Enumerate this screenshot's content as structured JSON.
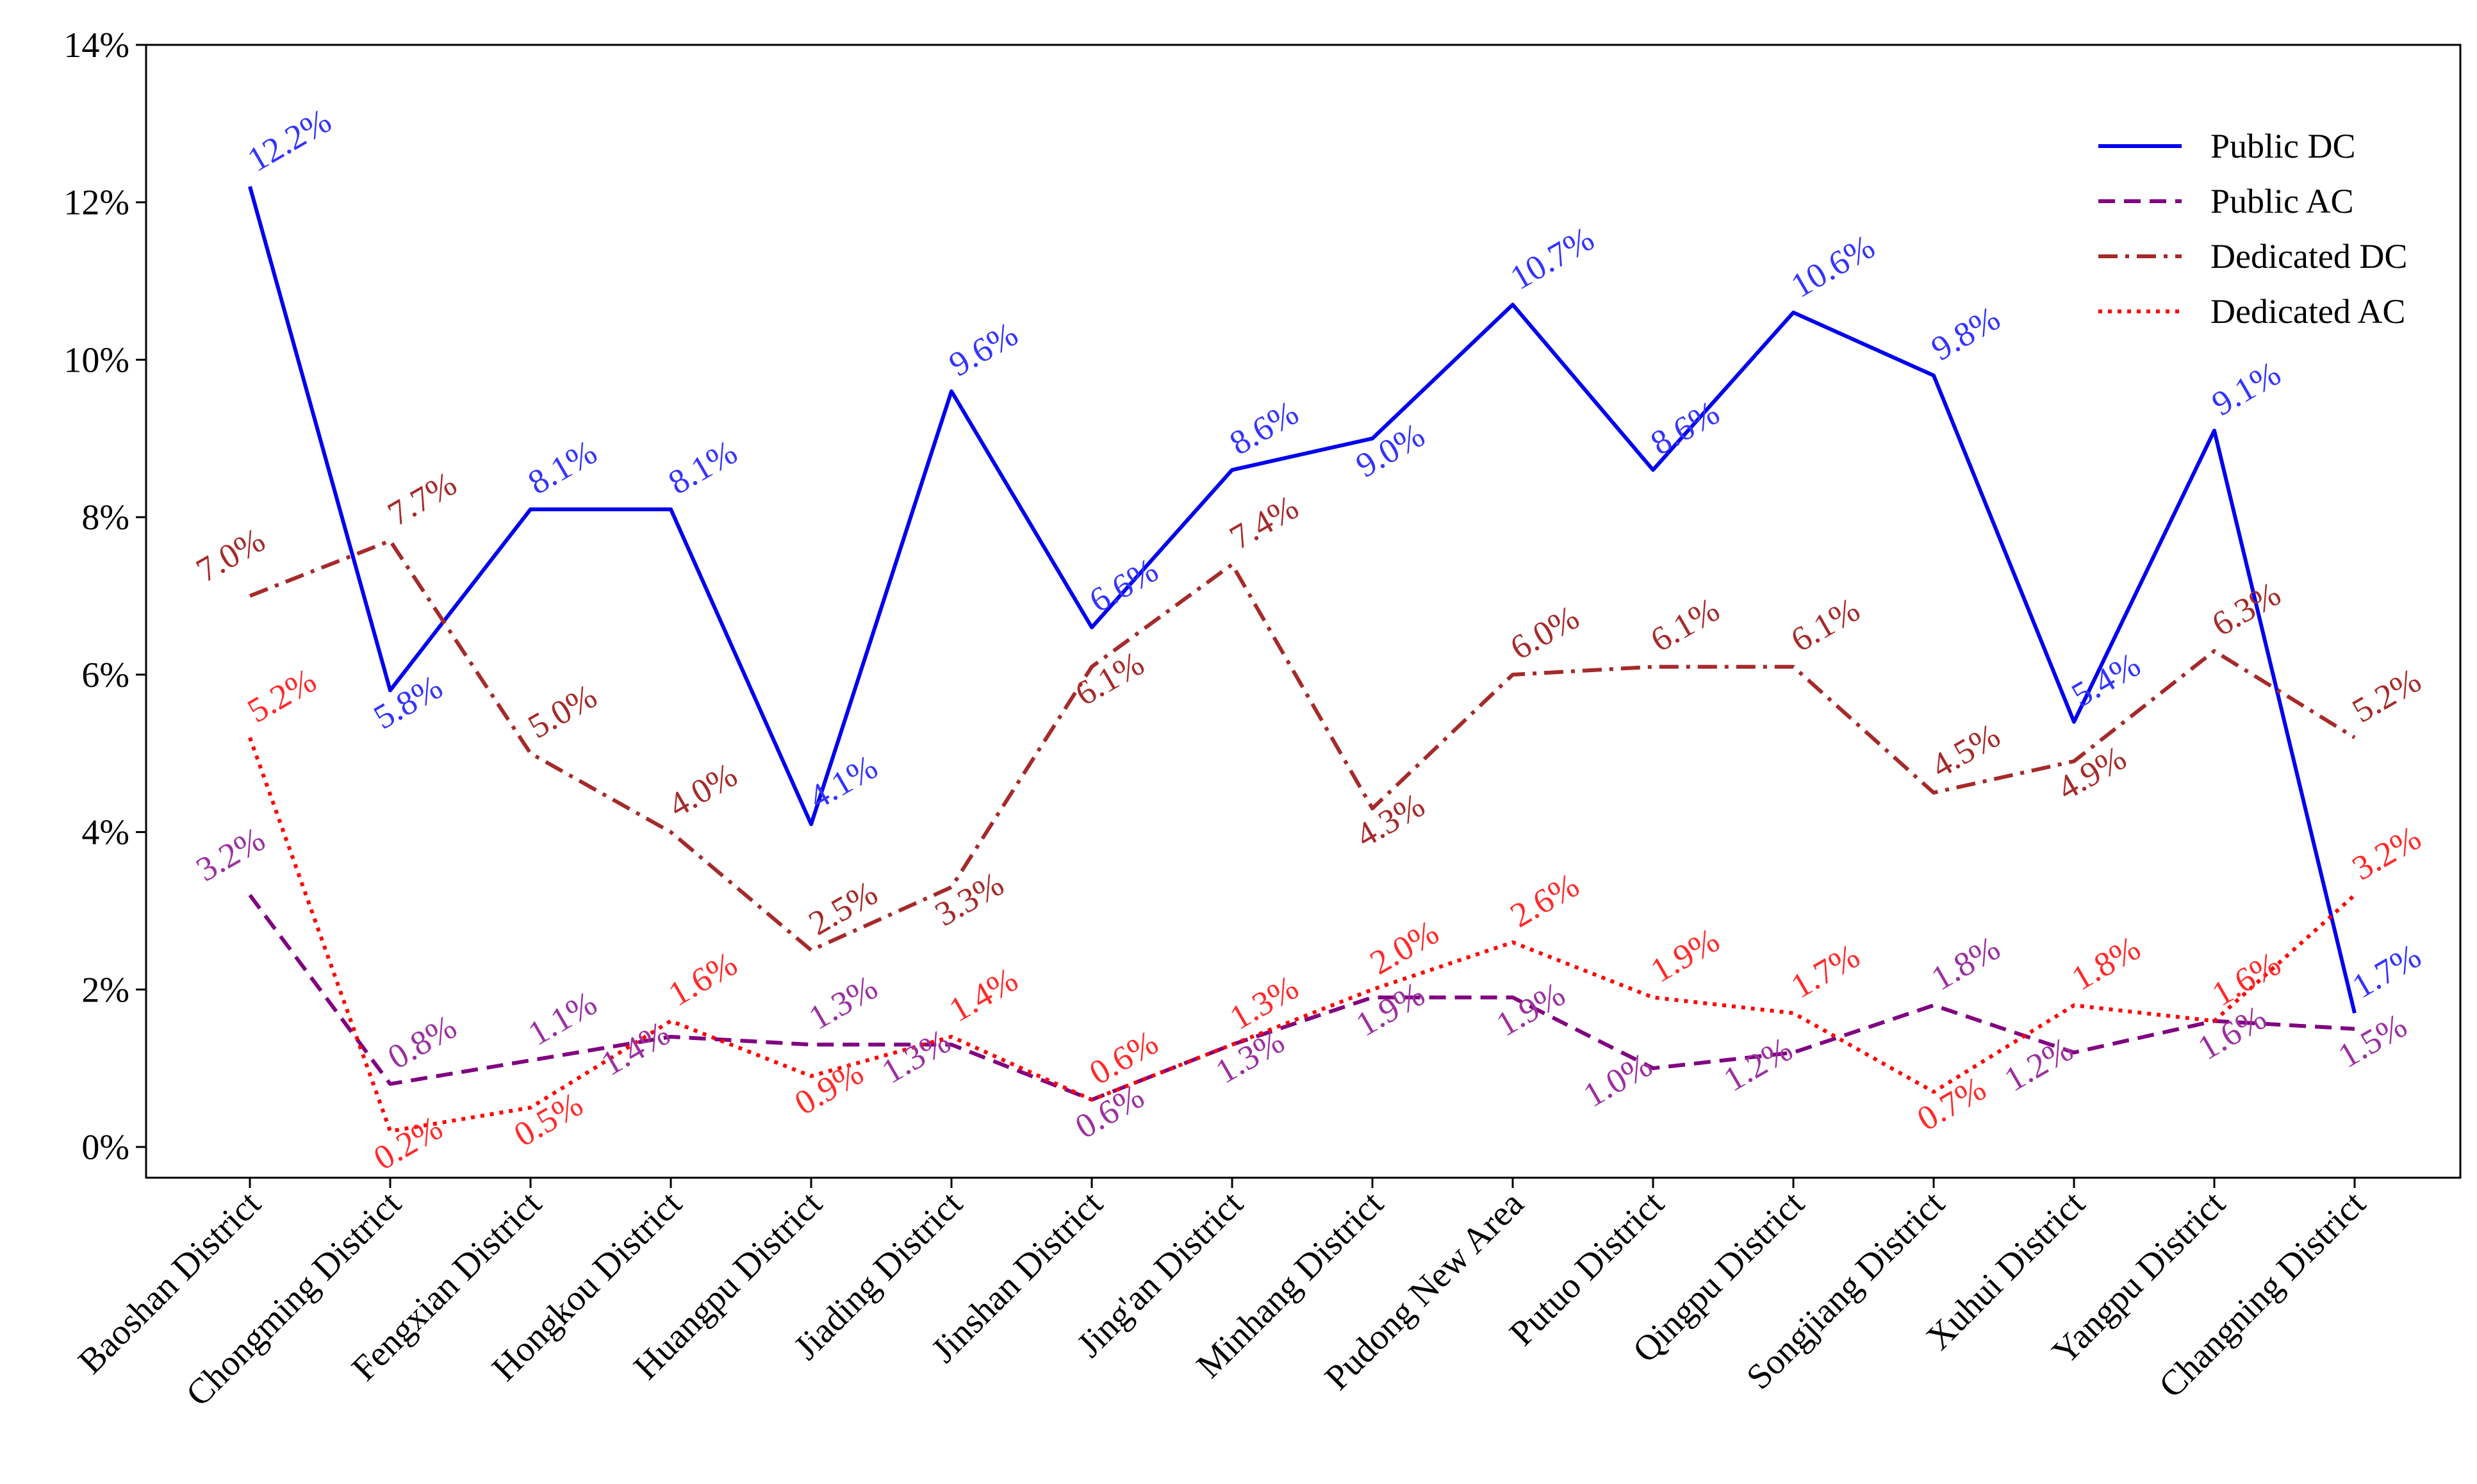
{
  "chart_data": {
    "type": "line",
    "title": "",
    "xlabel": "",
    "ylabel": "",
    "ylim": [
      0,
      14
    ],
    "yticks": [
      0,
      2,
      4,
      6,
      8,
      10,
      12,
      14
    ],
    "ytick_labels": [
      "0%",
      "2%",
      "4%",
      "6%",
      "8%",
      "10%",
      "12%",
      "14%"
    ],
    "grid": false,
    "legend_position": "top-right",
    "categories": [
      "Baoshan District",
      "Chongming District",
      "Fengxian District",
      "Hongkou District",
      "Huangpu District",
      "Jiading District",
      "Jinshan District",
      "Jing'an District",
      "Minhang District",
      "Pudong New Area",
      "Putuo District",
      "Qingpu District",
      "Songjiang District",
      "Xuhui District",
      "Yangpu District",
      "Changning District"
    ],
    "series": [
      {
        "name": "Public DC",
        "color": "#0000ee",
        "label_color": "#3333ff",
        "style": "solid",
        "values": [
          12.2,
          5.8,
          8.1,
          8.1,
          4.1,
          9.6,
          6.6,
          8.6,
          9.0,
          10.7,
          8.6,
          10.6,
          9.8,
          5.4,
          9.1,
          1.7
        ],
        "labels": [
          "12.2%",
          "5.8%",
          "8.1%",
          "8.1%",
          "4.1%",
          "9.6%",
          "6.6%",
          "8.6%",
          "9.0%",
          "10.7%",
          "8.6%",
          "10.6%",
          "9.8%",
          "5.4%",
          "9.1%",
          "1.7%"
        ],
        "label_pos": [
          "above",
          "below",
          "above",
          "above",
          "above",
          "above",
          "above",
          "above",
          "below",
          "above",
          "above",
          "above",
          "above",
          "above",
          "above",
          "above"
        ]
      },
      {
        "name": "Public AC",
        "color": "#800080",
        "label_color": "#9b30a0",
        "style": "dashed",
        "values": [
          3.2,
          0.8,
          1.1,
          1.4,
          1.3,
          1.3,
          0.6,
          1.3,
          1.9,
          1.9,
          1.0,
          1.2,
          1.8,
          1.2,
          1.6,
          1.5
        ],
        "labels": [
          "3.2%",
          "0.8%",
          "1.1%",
          "1.4%",
          "1.3%",
          "1.3%",
          "0.6%",
          "1.3%",
          "1.9%",
          "1.9%",
          "1.0%",
          "1.2%",
          "1.8%",
          "1.2%",
          "1.6%",
          "1.5%"
        ],
        "label_pos": [
          "above-left",
          "above",
          "above",
          "below-left",
          "above",
          "below-left",
          "below",
          "below",
          "below",
          "below",
          "below-left",
          "below-left",
          "above",
          "below-left",
          "below",
          "below"
        ]
      },
      {
        "name": "Dedicated DC",
        "color": "#a52a2a",
        "label_color": "#a52a2a",
        "style": "dashdot",
        "values": [
          7.0,
          7.7,
          5.0,
          4.0,
          2.5,
          3.3,
          6.1,
          7.4,
          4.3,
          6.0,
          6.1,
          6.1,
          4.5,
          4.9,
          6.3,
          5.2
        ],
        "labels": [
          "7.0%",
          "7.7%",
          "5.0%",
          "4.0%",
          "2.5%",
          "3.3%",
          "6.1%",
          "7.4%",
          "4.3%",
          "6.0%",
          "6.1%",
          "6.1%",
          "4.5%",
          "4.9%",
          "6.3%",
          "5.2%"
        ],
        "label_pos": [
          "above-left",
          "above",
          "above",
          "above",
          "above",
          "below",
          "below",
          "above",
          "below",
          "above",
          "above",
          "above",
          "above",
          "below",
          "above",
          "above"
        ]
      },
      {
        "name": "Dedicated AC",
        "color": "#ff0000",
        "label_color": "#ff2a2a",
        "style": "dotted",
        "values": [
          5.2,
          0.2,
          0.5,
          1.6,
          0.9,
          1.4,
          0.6,
          1.3,
          2.0,
          2.6,
          1.9,
          1.7,
          0.7,
          1.8,
          1.6,
          3.2
        ],
        "labels": [
          "5.2%",
          "0.2%",
          "0.5%",
          "1.6%",
          "0.9%",
          "1.4%",
          "0.6%",
          "1.3%",
          "2.0%",
          "2.6%",
          "1.9%",
          "1.7%",
          "0.7%",
          "1.8%",
          "1.6%",
          "3.2%"
        ],
        "label_pos": [
          "above",
          "below",
          "below",
          "above",
          "below",
          "above",
          "above",
          "above",
          "above",
          "above",
          "above",
          "above",
          "below",
          "above",
          "above",
          "above"
        ]
      }
    ]
  }
}
